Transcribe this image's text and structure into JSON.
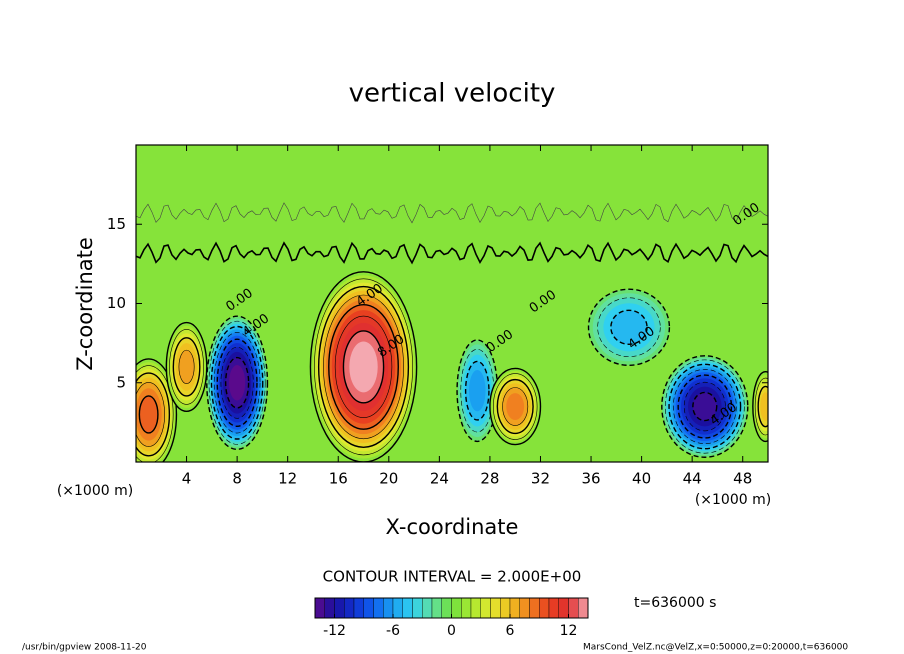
{
  "chart_data": {
    "type": "contour",
    "title": "vertical velocity",
    "xlabel": "X-coordinate",
    "ylabel": "Z-coordinate",
    "xunit": "(×1000 m)",
    "yunit": "(×1000 m)",
    "xlim": [
      0,
      50
    ],
    "xticks": [
      4,
      8,
      12,
      16,
      20,
      24,
      28,
      32,
      36,
      40,
      44,
      48
    ],
    "ylim": [
      0,
      20
    ],
    "yticks": [
      5,
      10,
      15
    ],
    "cells": [
      {
        "x": 1,
        "z": 3,
        "rx": 2.2,
        "rz": 3.5,
        "peak": 9
      },
      {
        "x": 4,
        "z": 6,
        "rx": 1.6,
        "rz": 2.8,
        "peak": 7
      },
      {
        "x": 8,
        "z": 5,
        "rx": 2.4,
        "rz": 4.2,
        "peak": -14
      },
      {
        "x": 18,
        "z": 6,
        "rx": 4.2,
        "rz": 6,
        "peak": 14
      },
      {
        "x": 27,
        "z": 4.5,
        "rx": 1.6,
        "rz": 3.2,
        "peak": -6
      },
      {
        "x": 30,
        "z": 3.5,
        "rx": 2,
        "rz": 2.4,
        "peak": 8
      },
      {
        "x": 39,
        "z": 8.5,
        "rx": 3.2,
        "rz": 2.4,
        "peak": -5
      },
      {
        "x": 45,
        "z": 3.5,
        "rx": 3.4,
        "rz": 3.2,
        "peak": -13
      },
      {
        "x": 49.8,
        "z": 3.5,
        "rx": 1,
        "rz": 2.2,
        "peak": 6
      }
    ],
    "annotations": [
      {
        "text": "0.00",
        "x": 8.2,
        "z": 10.2
      },
      {
        "text": "4.00",
        "x": 9.5,
        "z": 8.6
      },
      {
        "text": "4.00",
        "x": 18.5,
        "z": 10.5
      },
      {
        "text": "8.00",
        "x": 20.2,
        "z": 7.3
      },
      {
        "text": "0.00",
        "x": 28.8,
        "z": 7.6
      },
      {
        "text": "0.00",
        "x": 32.2,
        "z": 10.1
      },
      {
        "text": "4.00",
        "x": 40,
        "z": 7.8
      },
      {
        "text": "4.00",
        "x": 46.5,
        "z": 3
      },
      {
        "text": "0.00",
        "x": 48.3,
        "z": 15.6
      }
    ],
    "contour_label": "CONTOUR INTERVAL = 2.000E+00",
    "time_label": "t=636000 s",
    "colorbar": {
      "lim": [
        -14,
        14
      ],
      "ticks": [
        -12,
        -6,
        0,
        6,
        12
      ],
      "colors": [
        "#5a0a8c",
        "#1a10a0",
        "#1030d0",
        "#1060f0",
        "#1aa0f0",
        "#30d0f0",
        "#60e0a0",
        "#70e040",
        "#a8e830",
        "#e0e830",
        "#f0c020",
        "#f08020",
        "#e84020",
        "#e03030",
        "#f4a8b0"
      ]
    },
    "footer_left": "/usr/bin/gpview  2008-11-20",
    "footer_right": "MarsCond_VelZ.nc@VelZ,x=0:50000,z=0:20000,t=636000"
  }
}
